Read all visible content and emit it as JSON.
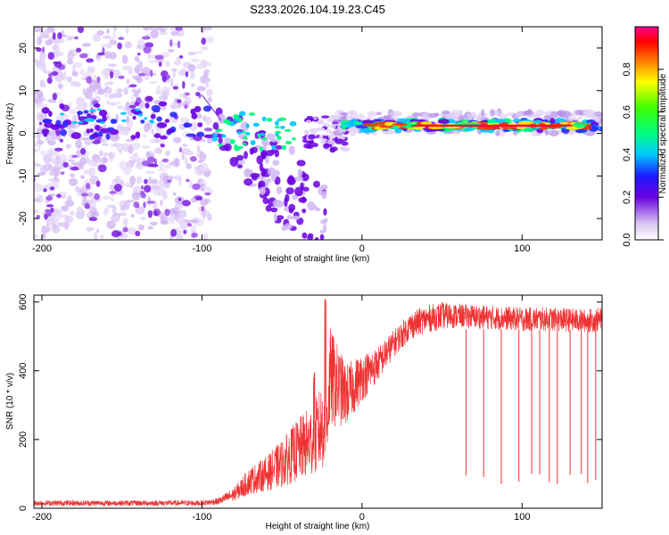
{
  "title": "S233.2026.104.19.23.C45",
  "chart_data": [
    {
      "type": "heatmap",
      "xlabel": "Height of straight line (km)",
      "ylabel": "Frequency (Hz)",
      "xlim": [
        -205,
        150
      ],
      "ylim": [
        -25,
        25
      ],
      "x_ticks": [
        -200,
        -100,
        0,
        100
      ],
      "y_ticks": [
        -20,
        -10,
        0,
        10,
        20
      ],
      "colorbar": {
        "label": "Normalized spectral amplitude",
        "range": [
          0,
          1
        ],
        "ticks": [
          "0.0",
          "0.2",
          "0.4",
          "0.6",
          "0.8"
        ]
      },
      "line_segment": {
        "x": [
          -100,
          -88
        ],
        "y": [
          9,
          3
        ]
      }
    },
    {
      "type": "line",
      "color": "#ee3333",
      "xlabel": "Height of straight line (km)",
      "ylabel": "SNR (10 * v/v)",
      "xlim": [
        -205,
        150
      ],
      "ylim": [
        0,
        620
      ],
      "x_ticks": [
        -200,
        -100,
        0,
        100
      ],
      "y_ticks": [
        0,
        200,
        400,
        600
      ],
      "envelope": {
        "x": [
          -205,
          -150,
          -100,
          -90,
          -80,
          -70,
          -60,
          -50,
          -40,
          -30,
          -22,
          -20,
          -10,
          0,
          10,
          20,
          30,
          40,
          50,
          60,
          80,
          100,
          120,
          140,
          150
        ],
        "mean": [
          15,
          15,
          15,
          20,
          40,
          80,
          100,
          130,
          170,
          200,
          260,
          380,
          330,
          380,
          420,
          480,
          530,
          550,
          560,
          560,
          555,
          550,
          550,
          545,
          550
        ],
        "spread": [
          8,
          8,
          8,
          10,
          20,
          40,
          50,
          70,
          90,
          110,
          140,
          150,
          90,
          70,
          50,
          40,
          40,
          40,
          40,
          35,
          35,
          35,
          35,
          35,
          35
        ]
      },
      "spike_peaks": [
        {
          "x": -23,
          "y": 615
        },
        {
          "x": -30,
          "y": 400
        }
      ],
      "dropouts_x": [
        65,
        76,
        87,
        98,
        106,
        111,
        117,
        122,
        130,
        137,
        141,
        146
      ]
    }
  ]
}
